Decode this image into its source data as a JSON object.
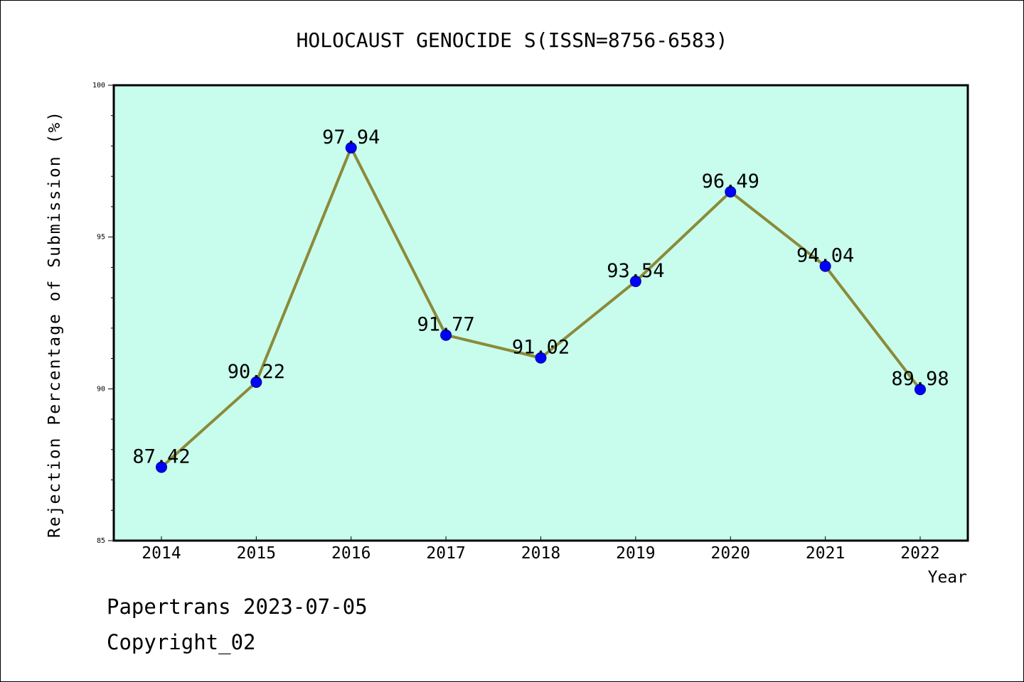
{
  "chart_data": {
    "type": "line",
    "title": "HOLOCAUST GENOCIDE S(ISSN=8756-6583)",
    "xlabel": "Year",
    "ylabel": "Rejection Percentage of Submission (%)",
    "categories": [
      "2014",
      "2015",
      "2016",
      "2017",
      "2018",
      "2019",
      "2020",
      "2021",
      "2022"
    ],
    "values": [
      87.42,
      90.22,
      97.94,
      91.77,
      91.02,
      93.54,
      96.49,
      94.04,
      89.98
    ],
    "data_labels": [
      "87.42",
      "90.22",
      "97.94",
      "91.77",
      "91.02",
      "93.54",
      "96.49",
      "94.04",
      "89.98"
    ],
    "ylim": [
      85,
      100
    ],
    "yticks": [
      85,
      90,
      95,
      100
    ],
    "ytick_labels": [
      "85",
      "90",
      "95",
      "100"
    ],
    "grid": false,
    "legend": "none",
    "colors": {
      "plot_background": "#c8fcec",
      "line": "#8b8a3a",
      "marker": "#0000ff",
      "marker_edge": "#00008b"
    }
  },
  "footer": {
    "line1": "Papertrans 2023-07-05",
    "line2": "Copyright_02"
  }
}
